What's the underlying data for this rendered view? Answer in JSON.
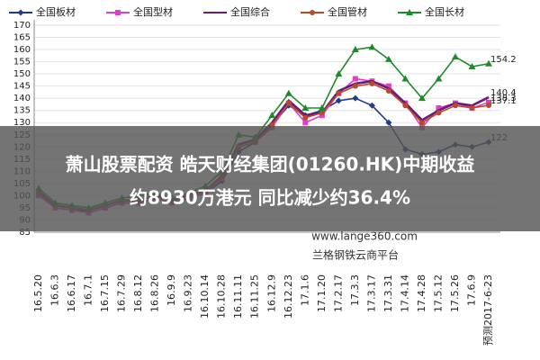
{
  "chart_data": {
    "type": "line",
    "categories": [
      "16.5.20",
      "16.6.3",
      "16.6.17",
      "16.7.1",
      "16.7.15",
      "16.7.29",
      "16.8.12",
      "16.8.26",
      "16.9.9",
      "16.9.23",
      "16.10.14",
      "16.10.28",
      "16.11.11",
      "16.11.25",
      "16.12.9",
      "16.12.23",
      "17.1.6",
      "17.1.20",
      "17.2.17",
      "17.3.3",
      "17.3.17",
      "17.3.31",
      "17.4.14",
      "17.4.28",
      "17.5.12",
      "17.5.26",
      "17.6.9",
      "预测2017-6-23"
    ],
    "series": [
      {
        "name": "全国板材",
        "color": "#1f3b8c",
        "marker": "diamond",
        "values": [
          102,
          96,
          95,
          93,
          95,
          97,
          97,
          99,
          97,
          99,
          101,
          106,
          118,
          122,
          129,
          137,
          133,
          135,
          139,
          140,
          137,
          130,
          119,
          117,
          118,
          121,
          120,
          122
        ]
      },
      {
        "name": "全国型材",
        "color": "#e040c8",
        "marker": "square",
        "values": [
          100,
          95,
          94,
          93,
          95,
          97,
          97,
          99,
          97,
          99,
          101,
          107,
          120,
          122,
          128,
          138,
          130,
          133,
          142,
          148,
          147,
          145,
          138,
          128,
          136,
          138,
          136,
          138.3
        ]
      },
      {
        "name": "全国综合",
        "color": "#6a1a7a",
        "marker": "none",
        "values": [
          101,
          96,
          95,
          94,
          96,
          98,
          98,
          100,
          98,
          100,
          102,
          108,
          121,
          123,
          130,
          139,
          133,
          134,
          143,
          146,
          147,
          144,
          138,
          131,
          135,
          138,
          137,
          140.4
        ]
      },
      {
        "name": "全国管材",
        "color": "#b84a2a",
        "marker": "circle",
        "values": [
          101,
          96,
          95,
          94,
          96,
          98,
          98,
          100,
          98,
          100,
          102,
          108,
          120,
          122,
          129,
          138,
          132,
          134,
          142,
          145,
          146,
          143,
          137,
          130,
          134,
          137,
          136,
          137.1
        ]
      },
      {
        "name": "全国长材",
        "color": "#1f8a2a",
        "marker": "triangle",
        "values": [
          103,
          97,
          96,
          95,
          97,
          99,
          100,
          101,
          99,
          101,
          104,
          110,
          125,
          124,
          133,
          142,
          136,
          136,
          150,
          160,
          161,
          156,
          148,
          140,
          148,
          157,
          153,
          154.2
        ]
      }
    ],
    "ylim": [
      85,
      170
    ],
    "yticks": [
      85,
      90,
      95,
      100,
      105,
      110,
      115,
      120,
      125,
      130,
      135,
      140,
      145,
      150,
      155,
      160,
      165,
      170
    ],
    "grid": true
  },
  "overlay": {
    "headline": [
      "萧山股票配资 皓天财经集团(01260.HK)中期收益",
      "约8930万港元 同比减少约36.4%"
    ]
  },
  "watermark": {
    "url": "www.lange360.com",
    "platform": "兰格钢铁云商平台"
  }
}
